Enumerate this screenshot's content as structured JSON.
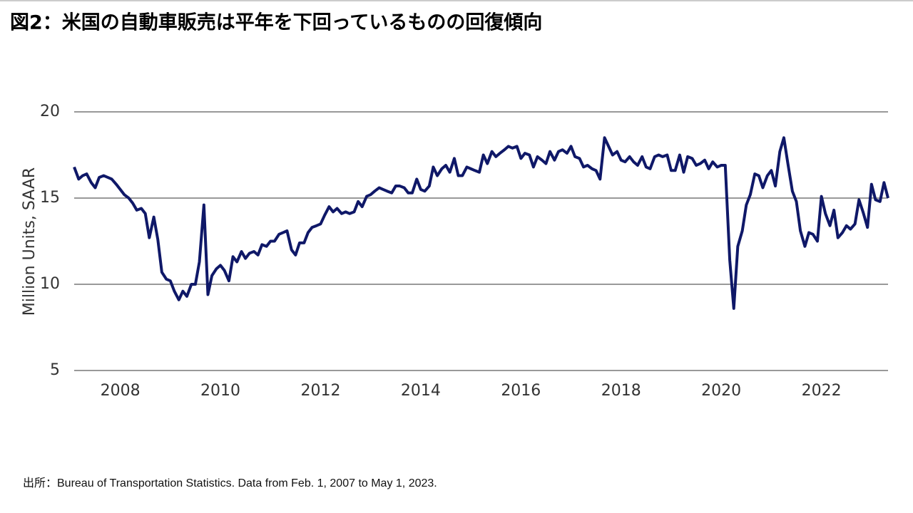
{
  "chart_data": {
    "type": "line",
    "title": "図2：米国の自動車販売は平年を下回っているものの回復傾向",
    "y_label": "Million Units, SAAR",
    "source": "出所：Bureau of Transportation Statistics. Data from Feb. 1, 2007 to May 1, 2023.",
    "xlim": [
      2007.08,
      2023.33
    ],
    "xticks": [
      2008,
      2010,
      2012,
      2014,
      2016,
      2018,
      2020,
      2022
    ],
    "ylim": [
      5,
      20
    ],
    "yticks": [
      5,
      10,
      15,
      20
    ],
    "grid": true,
    "x": [
      2007.08,
      2007.17,
      2007.25,
      2007.33,
      2007.42,
      2007.5,
      2007.58,
      2007.67,
      2007.75,
      2007.83,
      2007.92,
      2008,
      2008.08,
      2008.17,
      2008.25,
      2008.33,
      2008.42,
      2008.5,
      2008.58,
      2008.67,
      2008.75,
      2008.83,
      2008.92,
      2009,
      2009.08,
      2009.17,
      2009.25,
      2009.33,
      2009.42,
      2009.5,
      2009.58,
      2009.67,
      2009.75,
      2009.83,
      2009.92,
      2010,
      2010.08,
      2010.17,
      2010.25,
      2010.33,
      2010.42,
      2010.5,
      2010.58,
      2010.67,
      2010.75,
      2010.83,
      2010.92,
      2011,
      2011.08,
      2011.17,
      2011.25,
      2011.33,
      2011.42,
      2011.5,
      2011.58,
      2011.67,
      2011.75,
      2011.83,
      2011.92,
      2012,
      2012.08,
      2012.17,
      2012.25,
      2012.33,
      2012.42,
      2012.5,
      2012.58,
      2012.67,
      2012.75,
      2012.83,
      2012.92,
      2013,
      2013.08,
      2013.17,
      2013.25,
      2013.33,
      2013.42,
      2013.5,
      2013.58,
      2013.67,
      2013.75,
      2013.83,
      2013.92,
      2014,
      2014.08,
      2014.17,
      2014.25,
      2014.33,
      2014.42,
      2014.5,
      2014.58,
      2014.67,
      2014.75,
      2014.83,
      2014.92,
      2015,
      2015.08,
      2015.17,
      2015.25,
      2015.33,
      2015.42,
      2015.5,
      2015.58,
      2015.67,
      2015.75,
      2015.83,
      2015.92,
      2016,
      2016.08,
      2016.17,
      2016.25,
      2016.33,
      2016.42,
      2016.5,
      2016.58,
      2016.67,
      2016.75,
      2016.83,
      2016.92,
      2017,
      2017.08,
      2017.17,
      2017.25,
      2017.33,
      2017.42,
      2017.5,
      2017.58,
      2017.67,
      2017.75,
      2017.83,
      2017.92,
      2018,
      2018.08,
      2018.17,
      2018.25,
      2018.33,
      2018.42,
      2018.5,
      2018.58,
      2018.67,
      2018.75,
      2018.83,
      2018.92,
      2019,
      2019.08,
      2019.17,
      2019.25,
      2019.33,
      2019.42,
      2019.5,
      2019.58,
      2019.67,
      2019.75,
      2019.83,
      2019.92,
      2020,
      2020.08,
      2020.17,
      2020.25,
      2020.33,
      2020.42,
      2020.5,
      2020.58,
      2020.67,
      2020.75,
      2020.83,
      2020.92,
      2021,
      2021.08,
      2021.17,
      2021.25,
      2021.33,
      2021.42,
      2021.5,
      2021.58,
      2021.67,
      2021.75,
      2021.83,
      2021.92,
      2022,
      2022.08,
      2022.17,
      2022.25,
      2022.33,
      2022.42,
      2022.5,
      2022.58,
      2022.67,
      2022.75,
      2022.83,
      2022.92,
      2023,
      2023.08,
      2023.17,
      2023.25,
      2023.33
    ],
    "series": [
      {
        "color": "#0f1868",
        "values": [
          16.8,
          16.1,
          16.3,
          16.4,
          15.9,
          15.6,
          16.2,
          16.3,
          16.2,
          16.1,
          15.8,
          15.5,
          15.2,
          15.0,
          14.7,
          14.3,
          14.4,
          14.1,
          12.7,
          13.9,
          12.6,
          10.7,
          10.3,
          10.2,
          9.6,
          9.1,
          9.6,
          9.3,
          10.0,
          10.0,
          11.3,
          14.6,
          9.4,
          10.5,
          10.9,
          11.1,
          10.8,
          10.2,
          11.6,
          11.3,
          11.9,
          11.5,
          11.8,
          11.9,
          11.7,
          12.3,
          12.2,
          12.5,
          12.5,
          12.9,
          13.0,
          13.1,
          12.0,
          11.7,
          12.4,
          12.4,
          13.0,
          13.3,
          13.4,
          13.5,
          14.0,
          14.5,
          14.2,
          14.4,
          14.1,
          14.2,
          14.1,
          14.2,
          14.8,
          14.5,
          15.1,
          15.2,
          15.4,
          15.6,
          15.5,
          15.4,
          15.3,
          15.7,
          15.7,
          15.6,
          15.3,
          15.3,
          16.1,
          15.5,
          15.4,
          15.7,
          16.8,
          16.3,
          16.7,
          16.9,
          16.5,
          17.3,
          16.3,
          16.3,
          16.8,
          16.7,
          16.6,
          16.5,
          17.5,
          17.0,
          17.7,
          17.4,
          17.6,
          17.8,
          18.0,
          17.9,
          18.0,
          17.3,
          17.6,
          17.5,
          16.8,
          17.4,
          17.2,
          17.0,
          17.7,
          17.2,
          17.7,
          17.8,
          17.6,
          18.0,
          17.4,
          17.3,
          16.8,
          16.9,
          16.7,
          16.6,
          16.1,
          18.5,
          18.0,
          17.5,
          17.7,
          17.2,
          17.1,
          17.4,
          17.1,
          16.9,
          17.4,
          16.8,
          16.7,
          17.4,
          17.5,
          17.4,
          17.5,
          16.6,
          16.6,
          17.5,
          16.5,
          17.4,
          17.3,
          16.9,
          17.0,
          17.2,
          16.7,
          17.1,
          16.8,
          16.9,
          16.9,
          11.4,
          8.6,
          12.2,
          13.1,
          14.6,
          15.2,
          16.4,
          16.3,
          15.6,
          16.3,
          16.6,
          15.7,
          17.7,
          18.5,
          17.0,
          15.4,
          14.8,
          13.1,
          12.2,
          13.0,
          12.9,
          12.5,
          15.1,
          14.1,
          13.4,
          14.3,
          12.7,
          13.0,
          13.4,
          13.2,
          13.5,
          14.9,
          14.2,
          13.3,
          15.8,
          14.9,
          14.8,
          15.9,
          15.0
        ]
      }
    ]
  }
}
